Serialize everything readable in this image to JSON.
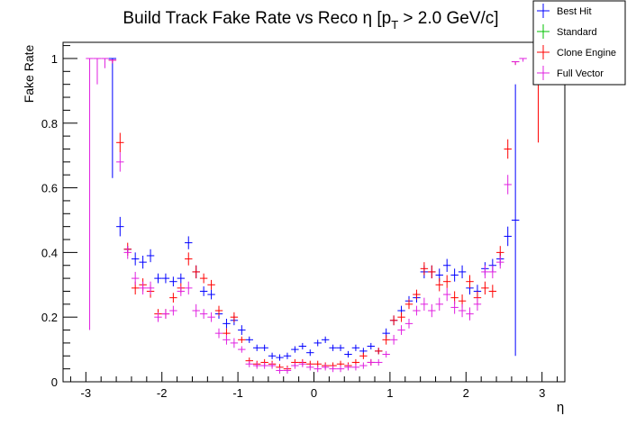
{
  "chart_data": {
    "type": "scatter",
    "title": "Build Track Fake Rate vs Reco η [p",
    "title_sub": "T",
    "title_tail": " > 2.0 GeV/c]",
    "xlabel": "η",
    "ylabel": "Fake Rate",
    "xlim": [
      -3.3,
      3.3
    ],
    "ylim": [
      0,
      1.05
    ],
    "x_ticks": [
      -3,
      -2,
      -1,
      0,
      1,
      2,
      3
    ],
    "y_ticks": [
      0,
      0.2,
      0.4,
      0.6,
      0.8,
      1
    ],
    "x_tick_labels": [
      "-3",
      "-2",
      "-1",
      "0",
      "1",
      "2",
      "3"
    ],
    "y_tick_labels": [
      "0",
      "0.2",
      "0.4",
      "0.6",
      "0.8",
      "1"
    ],
    "grid": false,
    "legend_position": "top-right",
    "bin_half_width": 0.05,
    "series": [
      {
        "name": "Best Hit",
        "color": "#0000ff",
        "points": [
          [
            -2.65,
            1.0,
            0.37,
            0.0
          ],
          [
            -2.55,
            0.48,
            0.03,
            0.03
          ],
          [
            -2.45,
            0.41,
            0.01,
            0.01
          ],
          [
            -2.35,
            0.38,
            0.02,
            0.02
          ],
          [
            -2.25,
            0.37,
            0.02,
            0.02
          ],
          [
            -2.15,
            0.39,
            0.02,
            0.02
          ],
          [
            -2.05,
            0.32,
            0.015,
            0.015
          ],
          [
            -1.95,
            0.32,
            0.015,
            0.015
          ],
          [
            -1.85,
            0.31,
            0.015,
            0.015
          ],
          [
            -1.75,
            0.32,
            0.015,
            0.015
          ],
          [
            -1.65,
            0.43,
            0.02,
            0.02
          ],
          [
            -1.55,
            0.34,
            0.02,
            0.02
          ],
          [
            -1.45,
            0.28,
            0.015,
            0.015
          ],
          [
            -1.35,
            0.27,
            0.015,
            0.015
          ],
          [
            -1.25,
            0.21,
            0.015,
            0.015
          ],
          [
            -1.15,
            0.18,
            0.015,
            0.015
          ],
          [
            -1.05,
            0.19,
            0.015,
            0.015
          ],
          [
            -0.95,
            0.16,
            0.015,
            0.015
          ],
          [
            -0.85,
            0.13,
            0.01,
            0.01
          ],
          [
            -0.75,
            0.105,
            0.01,
            0.01
          ],
          [
            -0.65,
            0.105,
            0.01,
            0.01
          ],
          [
            -0.55,
            0.08,
            0.01,
            0.01
          ],
          [
            -0.45,
            0.075,
            0.01,
            0.01
          ],
          [
            -0.35,
            0.08,
            0.01,
            0.01
          ],
          [
            -0.25,
            0.1,
            0.01,
            0.01
          ],
          [
            -0.15,
            0.11,
            0.01,
            0.01
          ],
          [
            -0.05,
            0.09,
            0.01,
            0.01
          ],
          [
            0.05,
            0.12,
            0.01,
            0.01
          ],
          [
            0.15,
            0.13,
            0.01,
            0.01
          ],
          [
            0.25,
            0.105,
            0.01,
            0.01
          ],
          [
            0.35,
            0.105,
            0.01,
            0.01
          ],
          [
            0.45,
            0.085,
            0.01,
            0.01
          ],
          [
            0.55,
            0.105,
            0.01,
            0.01
          ],
          [
            0.65,
            0.095,
            0.01,
            0.01
          ],
          [
            0.75,
            0.11,
            0.01,
            0.01
          ],
          [
            0.85,
            0.095,
            0.01,
            0.01
          ],
          [
            0.95,
            0.15,
            0.015,
            0.015
          ],
          [
            1.05,
            0.19,
            0.015,
            0.015
          ],
          [
            1.15,
            0.22,
            0.015,
            0.015
          ],
          [
            1.25,
            0.25,
            0.015,
            0.015
          ],
          [
            1.35,
            0.26,
            0.015,
            0.015
          ],
          [
            1.45,
            0.34,
            0.02,
            0.02
          ],
          [
            1.55,
            0.34,
            0.02,
            0.02
          ],
          [
            1.65,
            0.33,
            0.02,
            0.02
          ],
          [
            1.75,
            0.36,
            0.02,
            0.02
          ],
          [
            1.85,
            0.33,
            0.02,
            0.02
          ],
          [
            1.95,
            0.34,
            0.02,
            0.02
          ],
          [
            2.05,
            0.29,
            0.02,
            0.02
          ],
          [
            2.15,
            0.28,
            0.02,
            0.02
          ],
          [
            2.25,
            0.35,
            0.02,
            0.02
          ],
          [
            2.35,
            0.36,
            0.02,
            0.02
          ],
          [
            2.45,
            0.38,
            0.02,
            0.02
          ],
          [
            2.55,
            0.45,
            0.03,
            0.03
          ],
          [
            2.65,
            0.5,
            0.42,
            0.42
          ]
        ]
      },
      {
        "name": "Standard",
        "color": "#00c000",
        "points": []
      },
      {
        "name": "Clone Engine",
        "color": "#ff0000",
        "points": [
          [
            -2.65,
            0.995,
            0.01,
            0.0
          ],
          [
            -2.55,
            0.74,
            0.03,
            0.03
          ],
          [
            -2.45,
            0.41,
            0.02,
            0.02
          ],
          [
            -2.35,
            0.29,
            0.02,
            0.02
          ],
          [
            -2.25,
            0.3,
            0.02,
            0.02
          ],
          [
            -2.15,
            0.28,
            0.02,
            0.02
          ],
          [
            -2.05,
            0.21,
            0.015,
            0.015
          ],
          [
            -1.95,
            0.21,
            0.015,
            0.015
          ],
          [
            -1.85,
            0.26,
            0.015,
            0.015
          ],
          [
            -1.75,
            0.29,
            0.015,
            0.015
          ],
          [
            -1.65,
            0.38,
            0.02,
            0.02
          ],
          [
            -1.55,
            0.34,
            0.02,
            0.02
          ],
          [
            -1.45,
            0.32,
            0.015,
            0.015
          ],
          [
            -1.35,
            0.3,
            0.015,
            0.015
          ],
          [
            -1.25,
            0.22,
            0.015,
            0.015
          ],
          [
            -1.15,
            0.15,
            0.015,
            0.015
          ],
          [
            -1.05,
            0.2,
            0.015,
            0.015
          ],
          [
            -0.95,
            0.13,
            0.01,
            0.01
          ],
          [
            -0.85,
            0.065,
            0.01,
            0.01
          ],
          [
            -0.75,
            0.055,
            0.01,
            0.01
          ],
          [
            -0.65,
            0.06,
            0.01,
            0.01
          ],
          [
            -0.55,
            0.055,
            0.01,
            0.01
          ],
          [
            -0.45,
            0.045,
            0.01,
            0.01
          ],
          [
            -0.35,
            0.04,
            0.01,
            0.01
          ],
          [
            -0.25,
            0.06,
            0.01,
            0.01
          ],
          [
            -0.15,
            0.06,
            0.01,
            0.01
          ],
          [
            -0.05,
            0.055,
            0.01,
            0.01
          ],
          [
            0.05,
            0.055,
            0.01,
            0.01
          ],
          [
            0.15,
            0.05,
            0.01,
            0.01
          ],
          [
            0.25,
            0.05,
            0.01,
            0.01
          ],
          [
            0.35,
            0.055,
            0.01,
            0.01
          ],
          [
            0.45,
            0.05,
            0.01,
            0.01
          ],
          [
            0.55,
            0.06,
            0.01,
            0.01
          ],
          [
            0.65,
            0.08,
            0.01,
            0.01
          ],
          [
            0.75,
            0.06,
            0.01,
            0.01
          ],
          [
            0.85,
            0.095,
            0.01,
            0.01
          ],
          [
            0.95,
            0.13,
            0.015,
            0.015
          ],
          [
            1.05,
            0.19,
            0.015,
            0.015
          ],
          [
            1.15,
            0.2,
            0.015,
            0.015
          ],
          [
            1.25,
            0.24,
            0.015,
            0.015
          ],
          [
            1.35,
            0.27,
            0.015,
            0.015
          ],
          [
            1.45,
            0.35,
            0.02,
            0.02
          ],
          [
            1.55,
            0.34,
            0.02,
            0.02
          ],
          [
            1.65,
            0.3,
            0.02,
            0.02
          ],
          [
            1.75,
            0.31,
            0.02,
            0.02
          ],
          [
            1.85,
            0.26,
            0.02,
            0.02
          ],
          [
            1.95,
            0.25,
            0.02,
            0.02
          ],
          [
            2.05,
            0.31,
            0.02,
            0.02
          ],
          [
            2.15,
            0.26,
            0.02,
            0.02
          ],
          [
            2.25,
            0.29,
            0.02,
            0.02
          ],
          [
            2.35,
            0.28,
            0.02,
            0.02
          ],
          [
            2.45,
            0.4,
            0.02,
            0.02
          ],
          [
            2.55,
            0.72,
            0.03,
            0.03
          ],
          [
            2.65,
            0.99,
            0.01,
            0.0
          ],
          [
            2.95,
            1.0,
            0.26,
            0.0
          ]
        ]
      },
      {
        "name": "Full Vector",
        "color": "#e020e0",
        "points": [
          [
            -2.95,
            1.0,
            0.84,
            0.0
          ],
          [
            -2.85,
            1.0,
            0.08,
            0.0
          ],
          [
            -2.75,
            1.0,
            0.03,
            0.0
          ],
          [
            -2.65,
            0.995,
            0.01,
            0.0
          ],
          [
            -2.55,
            0.68,
            0.03,
            0.03
          ],
          [
            -2.45,
            0.4,
            0.02,
            0.02
          ],
          [
            -2.35,
            0.32,
            0.02,
            0.02
          ],
          [
            -2.25,
            0.29,
            0.02,
            0.02
          ],
          [
            -2.15,
            0.29,
            0.02,
            0.02
          ],
          [
            -2.05,
            0.2,
            0.015,
            0.015
          ],
          [
            -1.95,
            0.21,
            0.015,
            0.015
          ],
          [
            -1.85,
            0.22,
            0.015,
            0.015
          ],
          [
            -1.75,
            0.28,
            0.015,
            0.015
          ],
          [
            -1.65,
            0.29,
            0.02,
            0.02
          ],
          [
            -1.55,
            0.22,
            0.02,
            0.02
          ],
          [
            -1.45,
            0.21,
            0.015,
            0.015
          ],
          [
            -1.35,
            0.2,
            0.015,
            0.015
          ],
          [
            -1.25,
            0.15,
            0.015,
            0.015
          ],
          [
            -1.15,
            0.13,
            0.015,
            0.015
          ],
          [
            -1.05,
            0.12,
            0.015,
            0.015
          ],
          [
            -0.95,
            0.1,
            0.01,
            0.01
          ],
          [
            -0.85,
            0.055,
            0.01,
            0.01
          ],
          [
            -0.75,
            0.05,
            0.01,
            0.01
          ],
          [
            -0.65,
            0.05,
            0.01,
            0.01
          ],
          [
            -0.55,
            0.05,
            0.01,
            0.01
          ],
          [
            -0.45,
            0.035,
            0.01,
            0.01
          ],
          [
            -0.35,
            0.035,
            0.01,
            0.01
          ],
          [
            -0.25,
            0.05,
            0.01,
            0.01
          ],
          [
            -0.15,
            0.055,
            0.01,
            0.01
          ],
          [
            -0.05,
            0.045,
            0.01,
            0.01
          ],
          [
            0.05,
            0.04,
            0.01,
            0.01
          ],
          [
            0.15,
            0.045,
            0.01,
            0.01
          ],
          [
            0.25,
            0.04,
            0.01,
            0.01
          ],
          [
            0.35,
            0.04,
            0.01,
            0.01
          ],
          [
            0.45,
            0.045,
            0.01,
            0.01
          ],
          [
            0.55,
            0.045,
            0.01,
            0.01
          ],
          [
            0.65,
            0.05,
            0.01,
            0.01
          ],
          [
            0.75,
            0.06,
            0.01,
            0.01
          ],
          [
            0.85,
            0.06,
            0.01,
            0.01
          ],
          [
            0.95,
            0.085,
            0.01,
            0.01
          ],
          [
            1.05,
            0.13,
            0.015,
            0.015
          ],
          [
            1.15,
            0.16,
            0.015,
            0.015
          ],
          [
            1.25,
            0.18,
            0.015,
            0.015
          ],
          [
            1.35,
            0.22,
            0.015,
            0.015
          ],
          [
            1.45,
            0.24,
            0.02,
            0.02
          ],
          [
            1.55,
            0.22,
            0.02,
            0.02
          ],
          [
            1.65,
            0.24,
            0.02,
            0.02
          ],
          [
            1.75,
            0.27,
            0.02,
            0.02
          ],
          [
            1.85,
            0.23,
            0.02,
            0.02
          ],
          [
            1.95,
            0.22,
            0.02,
            0.02
          ],
          [
            2.05,
            0.21,
            0.02,
            0.02
          ],
          [
            2.15,
            0.24,
            0.02,
            0.02
          ],
          [
            2.25,
            0.34,
            0.02,
            0.02
          ],
          [
            2.35,
            0.34,
            0.02,
            0.02
          ],
          [
            2.45,
            0.37,
            0.02,
            0.02
          ],
          [
            2.55,
            0.61,
            0.03,
            0.03
          ],
          [
            2.65,
            0.99,
            0.01,
            0.0
          ],
          [
            2.75,
            1.0,
            0.01,
            0.0
          ]
        ]
      }
    ]
  }
}
